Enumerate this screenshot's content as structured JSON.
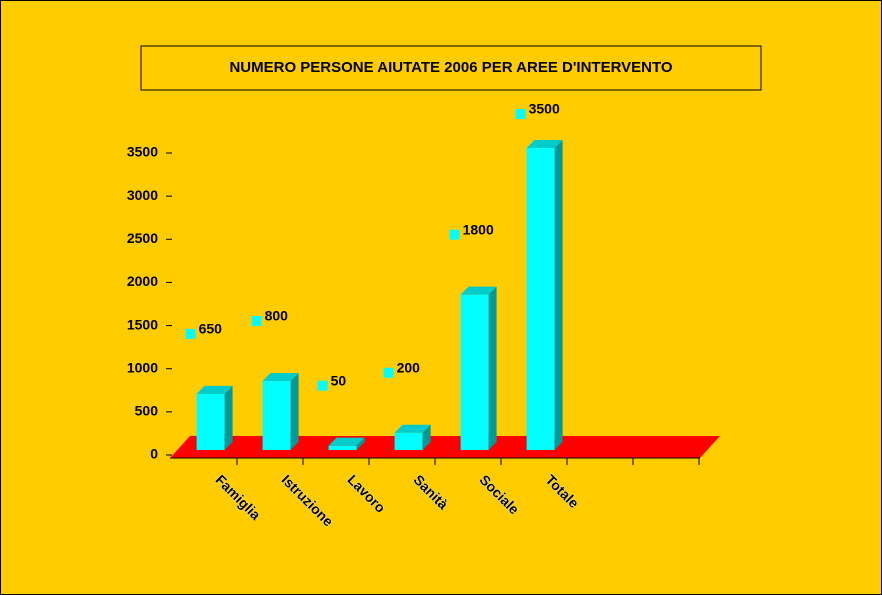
{
  "chart_data": {
    "type": "bar3d",
    "title": "NUMERO PERSONE AIUTATE 2006 PER AREE D'INTERVENTO",
    "categories": [
      "Famiglia",
      "Istruzione",
      "Lavoro",
      "Sanità",
      "Sociale",
      "Totale"
    ],
    "values": [
      650,
      800,
      50,
      200,
      1800,
      3500
    ],
    "color": "#00FFFF",
    "floor_color": "#FF0000",
    "ylim": [
      0,
      3500
    ],
    "yticks": [
      0,
      500,
      1000,
      1500,
      2000,
      2500,
      3000,
      3500
    ]
  }
}
